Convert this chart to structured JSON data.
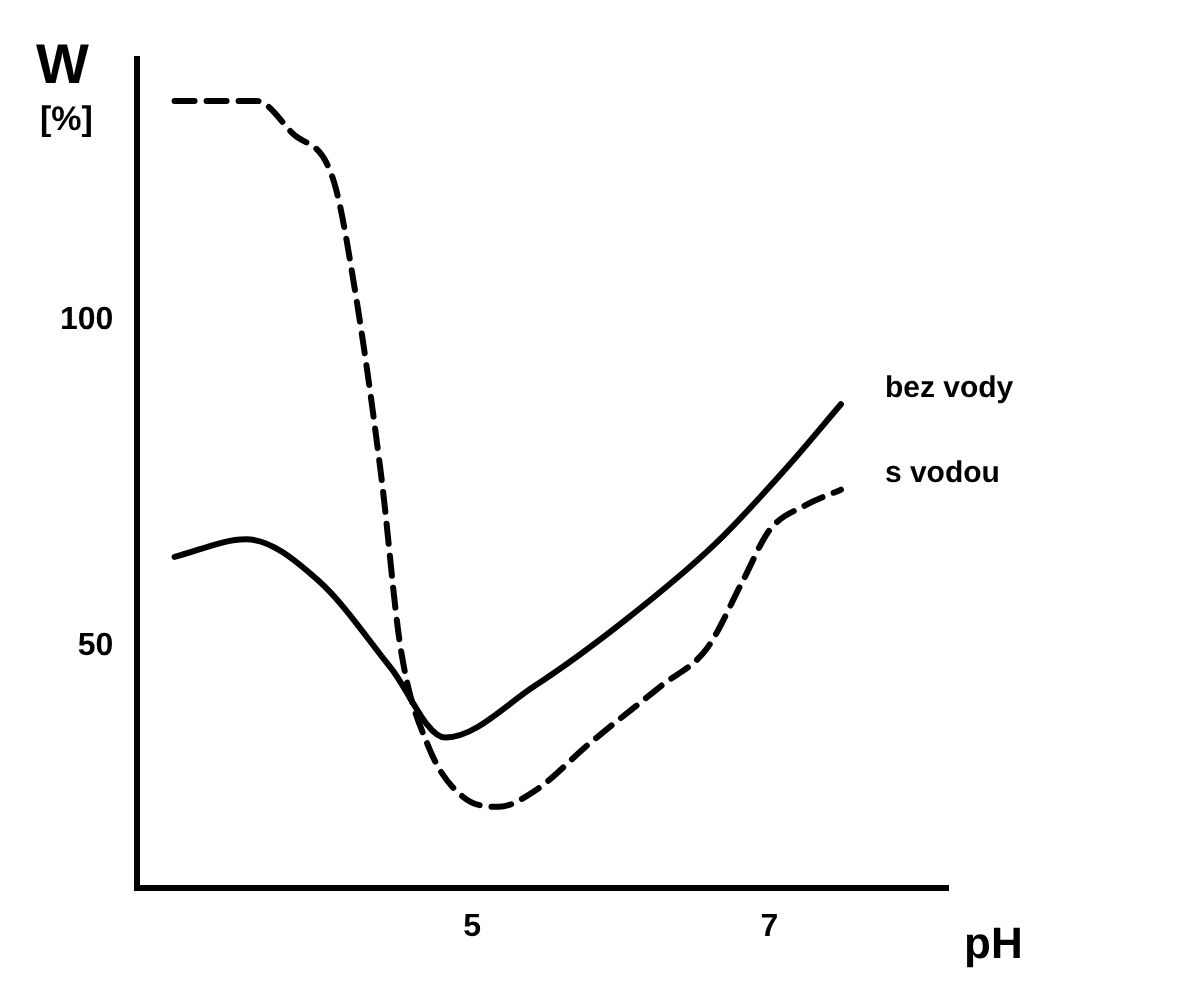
{
  "chart_data": {
    "type": "line",
    "xlabel": "pH",
    "ylabel": "W [%]",
    "xlim": [
      2.75,
      8.2
    ],
    "ylim": [
      13,
      140
    ],
    "xticks": [
      5,
      7
    ],
    "yticks": [
      50,
      100
    ],
    "grid": false,
    "legend": false,
    "marker": "none",
    "series": [
      {
        "name": "bez vody",
        "color": "#000000",
        "line_style": "solid",
        "x": [
          3.0,
          3.48,
          3.97,
          4.45,
          4.82,
          5.42,
          6.03,
          6.64,
          7.12,
          7.48
        ],
        "values": [
          63.7,
          66.4,
          60,
          46.8,
          36,
          43.9,
          54,
          65.8,
          77.5,
          87.1
        ]
      },
      {
        "name": "s vodou",
        "color": "#000000",
        "line_style": "dashed",
        "x": [
          3.0,
          3.55,
          3.79,
          4.07,
          4.21,
          4.39,
          4.52,
          4.7,
          4.94,
          5.18,
          5.42,
          5.79,
          6.27,
          6.58,
          6.82,
          7.0,
          7.24,
          7.48
        ],
        "values": [
          133.6,
          133.6,
          128.7,
          121.3,
          105,
          76,
          49.7,
          35,
          26.9,
          25.4,
          27.8,
          35.1,
          43.9,
          49.7,
          60,
          67.8,
          71.6,
          74
        ]
      }
    ]
  }
}
